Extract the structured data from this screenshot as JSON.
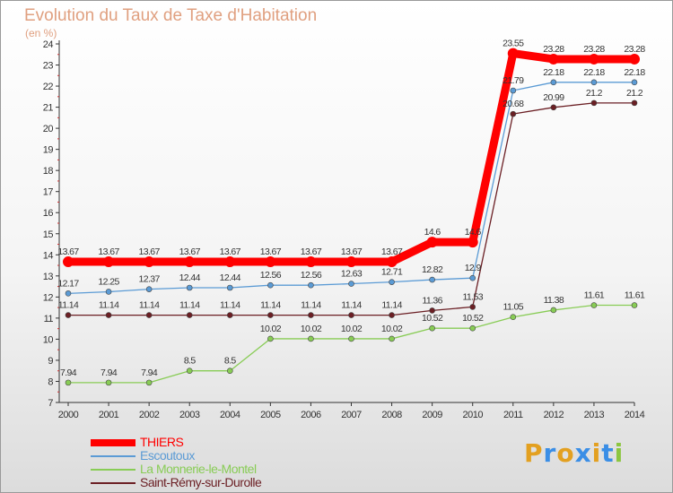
{
  "chart_data": {
    "type": "line",
    "title": "Evolution du Taux de Taxe d'Habitation",
    "subtitle": "(en %)",
    "x": [
      "2000",
      "2001",
      "2002",
      "2003",
      "2004",
      "2005",
      "2006",
      "2007",
      "2008",
      "2009",
      "2010",
      "2011",
      "2012",
      "2013",
      "2014"
    ],
    "ylim": [
      7,
      24
    ],
    "yticks": [
      7,
      8,
      9,
      10,
      11,
      12,
      13,
      14,
      15,
      16,
      17,
      18,
      19,
      20,
      21,
      22,
      23,
      24
    ],
    "grid": false,
    "legend_position": "bottom-left",
    "series": [
      {
        "name": "Saint-Rémy-sur-Durolle",
        "color": "#6b1f24",
        "values": [
          11.14,
          11.14,
          11.14,
          11.14,
          11.14,
          11.14,
          11.14,
          11.14,
          11.14,
          11.36,
          11.53,
          20.68,
          20.99,
          21.2,
          21.2
        ]
      },
      {
        "name": "La Monnerie-le-Montel",
        "color": "#88cc55",
        "values": [
          7.94,
          7.94,
          7.94,
          8.5,
          8.5,
          10.02,
          10.02,
          10.02,
          10.02,
          10.52,
          10.52,
          11.05,
          11.38,
          11.61,
          11.61
        ]
      },
      {
        "name": "Escoutoux",
        "color": "#5b9bd5",
        "values": [
          12.17,
          12.25,
          12.37,
          12.44,
          12.44,
          12.56,
          12.56,
          12.63,
          12.71,
          12.82,
          12.9,
          21.79,
          22.18,
          22.18,
          22.18
        ]
      },
      {
        "name": "THIERS",
        "color": "#ff0000",
        "values": [
          13.67,
          13.67,
          13.67,
          13.67,
          13.67,
          13.67,
          13.67,
          13.67,
          13.67,
          14.6,
          14.6,
          23.55,
          23.28,
          23.28,
          23.28
        ]
      }
    ]
  },
  "legend": [
    {
      "label": "THIERS",
      "color": "#ff0000"
    },
    {
      "label": "Escoutoux",
      "color": "#5b9bd5"
    },
    {
      "label": "La Monnerie-le-Montel",
      "color": "#88cc55"
    },
    {
      "label": "Saint-Rémy-sur-Durolle",
      "color": "#6b1f24"
    }
  ],
  "logo": {
    "text": "Proxiti",
    "colors": [
      "#e3a020",
      "#3a8ee6",
      "#e3a020",
      "#3a8ee6",
      "#e3a020",
      "#3a8ee6",
      "#8cc640"
    ]
  }
}
